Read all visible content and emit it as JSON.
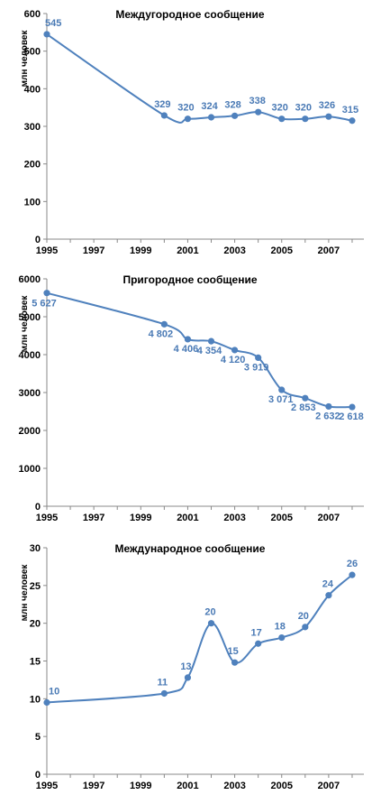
{
  "chart_data": [
    {
      "type": "line",
      "title": "Междугородное сообщение",
      "ylabel": "млн человек",
      "ylim": [
        0,
        600
      ],
      "yticks": [
        0,
        100,
        200,
        300,
        400,
        500,
        600
      ],
      "xlim": [
        1995,
        2008.5
      ],
      "xticks": [
        "1995",
        "1997",
        "1999",
        "2001",
        "2003",
        "2005",
        "2007"
      ],
      "series": [
        {
          "x": [
            1995,
            2000,
            2001,
            2002,
            2003,
            2004,
            2005,
            2006,
            2007,
            2008
          ],
          "values": [
            545,
            329,
            320,
            324,
            328,
            338,
            320,
            320,
            326,
            315
          ],
          "labels": [
            "545",
            "329",
            "320",
            "324",
            "328",
            "338",
            "320",
            "320",
            "326",
            "315"
          ]
        }
      ],
      "color": "#4f81bd",
      "grid": false
    },
    {
      "type": "line",
      "title": "Пригородное сообщение",
      "ylabel": "млн человек",
      "ylim": [
        0,
        6000
      ],
      "yticks": [
        0,
        1000,
        2000,
        3000,
        4000,
        5000,
        6000
      ],
      "xlim": [
        1995,
        2008.5
      ],
      "xticks": [
        "1995",
        "1997",
        "1999",
        "2001",
        "2003",
        "2005",
        "2007"
      ],
      "series": [
        {
          "x": [
            1995,
            2000,
            2001,
            2002,
            2003,
            2004,
            2005,
            2006,
            2007,
            2008
          ],
          "values": [
            5627,
            4802,
            4406,
            4354,
            4120,
            3919,
            3071,
            2853,
            2632,
            2618
          ],
          "labels": [
            "5 627",
            "4 802",
            "4 406",
            "4 354",
            "4 120",
            "3 919",
            "3 071",
            "2 853",
            "2 632",
            "2 618"
          ]
        }
      ],
      "color": "#4f81bd",
      "grid": false
    },
    {
      "type": "line",
      "title": "Международное сообщение",
      "ylabel": "млн человек",
      "ylim": [
        0,
        30
      ],
      "yticks": [
        0,
        5,
        10,
        15,
        20,
        25,
        30
      ],
      "xlim": [
        1995,
        2008.5
      ],
      "xticks": [
        "1995",
        "1997",
        "1999",
        "2001",
        "2003",
        "2005",
        "2007"
      ],
      "series": [
        {
          "x": [
            1995,
            2000,
            2001,
            2002,
            2003,
            2004,
            2005,
            2006,
            2007,
            2008
          ],
          "values": [
            9.5,
            10.7,
            12.8,
            20,
            14.8,
            17.3,
            18.1,
            19.5,
            23.7,
            26.4
          ],
          "labels": [
            "10",
            "11",
            "13",
            "20",
            "15",
            "17",
            "18",
            "20",
            "24",
            "26"
          ]
        }
      ],
      "color": "#4f81bd",
      "grid": false
    }
  ]
}
